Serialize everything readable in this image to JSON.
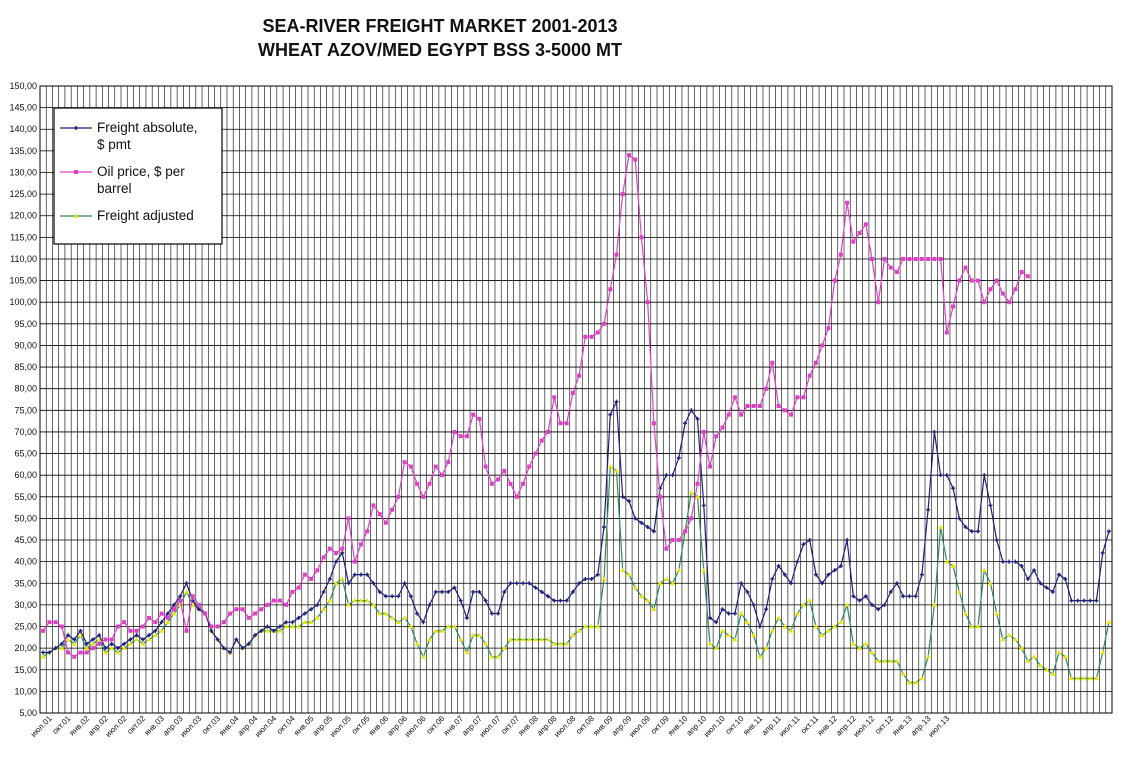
{
  "header": {
    "title_line1": "SEA-RIVER FREIGHT MARKET 2001-2013",
    "title_line2": "WHEAT AZOV/MED  EGYPT BSS 3-5000 MT"
  },
  "chart_data": {
    "type": "line",
    "title": "SEA-RIVER FREIGHT MARKET 2001-2013 WHEAT AZOV/MED  EGYPT BSS 3-5000 MT",
    "xlabel": "",
    "ylabel": "",
    "ylim": [
      5,
      150
    ],
    "y_ticks": [
      "5,00",
      "10,00",
      "15,00",
      "20,00",
      "25,00",
      "30,00",
      "35,00",
      "40,00",
      "45,00",
      "50,00",
      "55,00",
      "60,00",
      "65,00",
      "70,00",
      "75,00",
      "80,00",
      "85,00",
      "90,00",
      "95,00",
      "100,00",
      "105,00",
      "110,00",
      "115,00",
      "120,00",
      "125,00",
      "130,00",
      "135,00",
      "140,00",
      "145,00",
      "150,00"
    ],
    "grid": true,
    "legend_position": "top-left",
    "x_tick_labels": [
      "июл.01",
      "окт.01",
      "янв.02",
      "апр.02",
      "июл.02",
      "окт.02",
      "янв.03",
      "апр.03",
      "июл.03",
      "окт.03",
      "янв.04",
      "апр.04",
      "июл.04",
      "окт.04",
      "янв.05",
      "апр.05",
      "июл.05",
      "окт.05",
      "янв.06",
      "апр.06",
      "июл.06",
      "окт.06",
      "янв.07",
      "апр.07",
      "июл.07",
      "окт.07",
      "янв.08",
      "апр.08",
      "июл.08",
      "окт.08",
      "янв.09",
      "апр.09",
      "июл.09",
      "окт.09",
      "янв.10",
      "апр.10",
      "июл.10",
      "окт.10",
      "янв.11",
      "апр.11",
      "июл.11",
      "окт.11",
      "янв.12",
      "апр.12",
      "июл.12",
      "окт.12",
      "янв.13",
      "апр.13",
      "июл.13"
    ],
    "series": [
      {
        "name": "Freight absolute, $ pmt",
        "color": "#1f1f7a",
        "marker": "plus",
        "values": [
          19,
          19,
          20,
          21,
          23,
          22,
          24,
          21,
          22,
          23,
          20,
          21,
          20,
          21,
          22,
          23,
          22,
          23,
          24,
          26,
          28,
          30,
          32,
          35,
          31,
          29,
          28,
          24,
          22,
          20,
          19,
          22,
          20,
          21,
          23,
          24,
          25,
          24,
          25,
          26,
          26,
          27,
          28,
          29,
          30,
          33,
          36,
          40,
          42,
          35,
          37,
          37,
          37,
          35,
          33,
          32,
          32,
          32,
          35,
          32,
          28,
          26,
          30,
          33,
          33,
          33,
          34,
          31,
          27,
          33,
          33,
          31,
          28,
          28,
          33,
          35,
          35,
          35,
          35,
          34,
          33,
          32,
          31,
          31,
          31,
          33,
          35,
          36,
          36,
          37,
          48,
          74,
          77,
          55,
          54,
          50,
          49,
          48,
          47,
          57,
          60,
          60,
          64,
          72,
          75,
          73,
          53,
          27,
          26,
          29,
          28,
          28,
          35,
          33,
          30,
          25,
          29,
          36,
          39,
          37,
          35,
          40,
          44,
          45,
          37,
          35,
          37,
          38,
          39,
          45,
          32,
          31,
          32,
          30,
          29,
          30,
          33,
          35,
          32,
          32,
          32,
          37,
          52,
          70,
          60,
          60,
          57,
          50,
          48,
          47,
          47,
          60,
          53,
          45,
          40,
          40,
          40,
          39,
          36,
          38,
          35,
          34,
          33,
          37,
          36,
          31,
          31,
          31,
          31,
          31,
          42,
          47
        ]
      },
      {
        "name": "Oil price, $ per barrel",
        "color": "#e040c8",
        "marker": "square",
        "values": [
          24,
          26,
          26,
          25,
          19,
          18,
          19,
          19,
          20,
          21,
          22,
          22,
          25,
          26,
          24,
          24,
          25,
          27,
          26,
          28,
          27,
          29,
          31,
          24,
          32,
          30,
          28,
          25,
          25,
          26,
          28,
          29,
          29,
          27,
          28,
          29,
          30,
          31,
          31,
          30,
          33,
          34,
          37,
          36,
          38,
          41,
          43,
          42,
          43,
          50,
          40,
          44,
          47,
          53,
          51,
          49,
          52,
          55,
          63,
          62,
          58,
          55,
          58,
          62,
          60,
          63,
          70,
          69,
          69,
          74,
          73,
          62,
          58,
          59,
          61,
          58,
          55,
          58,
          62,
          65,
          68,
          70,
          78,
          72,
          72,
          79,
          83,
          92,
          92,
          93,
          95,
          103,
          111,
          125,
          134,
          133,
          115,
          100,
          72,
          55,
          43,
          45,
          45,
          47,
          50,
          58,
          70,
          62,
          69,
          71,
          74,
          78,
          74,
          76,
          76,
          76,
          80,
          86,
          76,
          75,
          74,
          78,
          78,
          83,
          86,
          90,
          94,
          105,
          111,
          123,
          114,
          116,
          118,
          110,
          100,
          110,
          108,
          107,
          110,
          110,
          110,
          110,
          110,
          110,
          110,
          93,
          99,
          105,
          108,
          105,
          105,
          100,
          103,
          105,
          102,
          100,
          103,
          107,
          106
        ]
      },
      {
        "name": "Freight adjusted",
        "color": "#e8e800",
        "marker": "triangle",
        "values": [
          18,
          19,
          20,
          20,
          22,
          21,
          23,
          20,
          21,
          22,
          19,
          20,
          19,
          20,
          21,
          22,
          21,
          22,
          23,
          24,
          26,
          28,
          30,
          33,
          30,
          29,
          28,
          24,
          22,
          20,
          19,
          22,
          20,
          21,
          23,
          24,
          24,
          24,
          24,
          25,
          25,
          25,
          26,
          26,
          27,
          29,
          31,
          35,
          36,
          30,
          31,
          31,
          31,
          30,
          28,
          28,
          27,
          26,
          27,
          25,
          21,
          18,
          22,
          24,
          24,
          25,
          25,
          22,
          19,
          23,
          23,
          21,
          18,
          18,
          20,
          22,
          22,
          22,
          22,
          22,
          22,
          22,
          21,
          21,
          21,
          23,
          24,
          25,
          25,
          25,
          36,
          62,
          61,
          38,
          37,
          34,
          32,
          31,
          29,
          35,
          36,
          35,
          38,
          47,
          56,
          55,
          38,
          21,
          20,
          24,
          23,
          22,
          28,
          26,
          23,
          18,
          20,
          24,
          27,
          25,
          24,
          28,
          30,
          31,
          25,
          23,
          24,
          25,
          26,
          30,
          21,
          20,
          21,
          19,
          17,
          17,
          17,
          17,
          14,
          12,
          12,
          13,
          18,
          30,
          48,
          40,
          39,
          33,
          28,
          25,
          25,
          38,
          35,
          28,
          22,
          23,
          22,
          20,
          17,
          18,
          16,
          15,
          14,
          19,
          18,
          13,
          13,
          13,
          13,
          13,
          19,
          26
        ]
      }
    ]
  }
}
